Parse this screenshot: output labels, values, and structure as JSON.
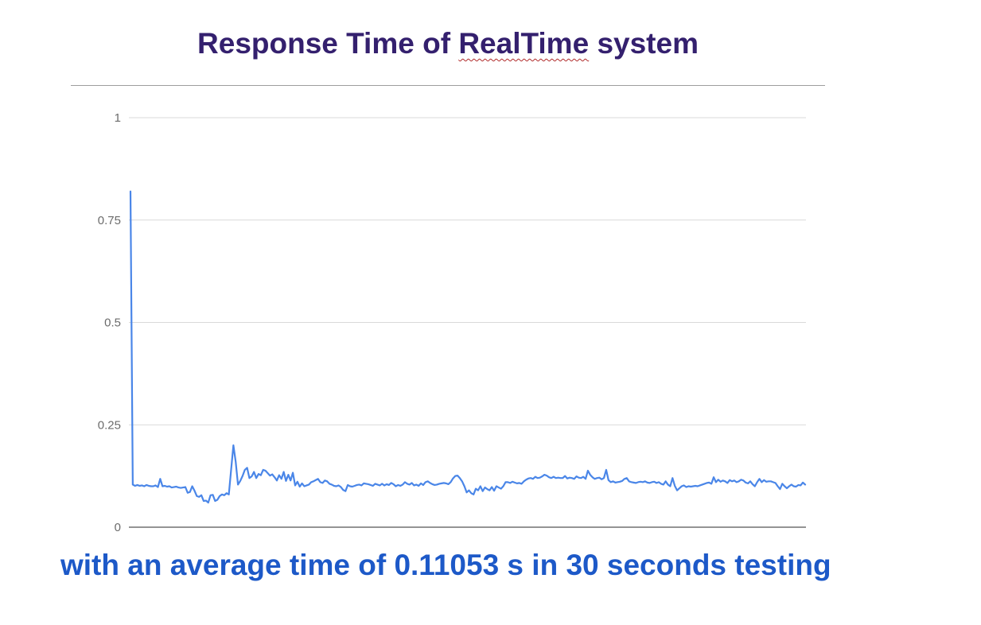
{
  "title": {
    "prefix": "Response Time of ",
    "highlight": "RealTime",
    "suffix": " system"
  },
  "caption": "with an average time of 0.11053 s in 30 seconds testing",
  "colors": {
    "title": "#34206e",
    "caption": "#1d59c8",
    "line": "#4a86e8",
    "grid": "#d9d9d9",
    "axis": "#555555"
  },
  "chart_data": {
    "type": "line",
    "title": "Response Time of RealTime system",
    "xlabel": "",
    "ylabel": "",
    "ylim": [
      0,
      1
    ],
    "yticks": [
      "0",
      "0.25",
      "0.5",
      "0.75",
      "1"
    ],
    "grid": true,
    "legend": "none",
    "series": [
      {
        "values": [
          0.82,
          0.104,
          0.101,
          0.103,
          0.101,
          0.102,
          0.1,
          0.103,
          0.101,
          0.1,
          0.1,
          0.102,
          0.098,
          0.118,
          0.1,
          0.101,
          0.099,
          0.1,
          0.097,
          0.098,
          0.099,
          0.097,
          0.096,
          0.097,
          0.098,
          0.084,
          0.086,
          0.1,
          0.089,
          0.076,
          0.074,
          0.078,
          0.064,
          0.065,
          0.06,
          0.078,
          0.079,
          0.064,
          0.067,
          0.076,
          0.08,
          0.078,
          0.083,
          0.08,
          0.14,
          0.2,
          0.16,
          0.104,
          0.113,
          0.125,
          0.14,
          0.145,
          0.12,
          0.124,
          0.135,
          0.12,
          0.13,
          0.127,
          0.14,
          0.138,
          0.132,
          0.126,
          0.129,
          0.122,
          0.114,
          0.127,
          0.118,
          0.135,
          0.113,
          0.128,
          0.114,
          0.133,
          0.102,
          0.111,
          0.099,
          0.107,
          0.1,
          0.102,
          0.104,
          0.11,
          0.112,
          0.115,
          0.118,
          0.11,
          0.108,
          0.114,
          0.112,
          0.106,
          0.104,
          0.101,
          0.1,
          0.102,
          0.098,
          0.091,
          0.088,
          0.103,
          0.1,
          0.099,
          0.101,
          0.103,
          0.104,
          0.102,
          0.107,
          0.106,
          0.105,
          0.103,
          0.101,
          0.106,
          0.104,
          0.102,
          0.106,
          0.102,
          0.105,
          0.103,
          0.108,
          0.105,
          0.1,
          0.103,
          0.101,
          0.104,
          0.11,
          0.106,
          0.104,
          0.108,
          0.102,
          0.104,
          0.101,
          0.107,
          0.103,
          0.11,
          0.112,
          0.108,
          0.105,
          0.103,
          0.104,
          0.106,
          0.107,
          0.108,
          0.107,
          0.105,
          0.11,
          0.119,
          0.125,
          0.126,
          0.12,
          0.112,
          0.1,
          0.085,
          0.09,
          0.083,
          0.08,
          0.094,
          0.09,
          0.1,
          0.088,
          0.097,
          0.093,
          0.09,
          0.098,
          0.089,
          0.1,
          0.097,
          0.094,
          0.1,
          0.11,
          0.11,
          0.108,
          0.111,
          0.109,
          0.107,
          0.108,
          0.106,
          0.112,
          0.116,
          0.119,
          0.12,
          0.118,
          0.123,
          0.12,
          0.121,
          0.124,
          0.128,
          0.126,
          0.122,
          0.12,
          0.123,
          0.12,
          0.121,
          0.12,
          0.12,
          0.125,
          0.119,
          0.121,
          0.12,
          0.118,
          0.124,
          0.121,
          0.12,
          0.123,
          0.118,
          0.138,
          0.128,
          0.122,
          0.118,
          0.12,
          0.121,
          0.117,
          0.12,
          0.14,
          0.115,
          0.11,
          0.112,
          0.109,
          0.11,
          0.111,
          0.113,
          0.118,
          0.12,
          0.112,
          0.11,
          0.109,
          0.108,
          0.11,
          0.111,
          0.11,
          0.112,
          0.109,
          0.108,
          0.11,
          0.111,
          0.108,
          0.11,
          0.106,
          0.104,
          0.112,
          0.104,
          0.1,
          0.12,
          0.101,
          0.09,
          0.095,
          0.1,
          0.102,
          0.098,
          0.1,
          0.099,
          0.1,
          0.101,
          0.1,
          0.102,
          0.104,
          0.106,
          0.108,
          0.109,
          0.106,
          0.122,
          0.11,
          0.116,
          0.111,
          0.114,
          0.112,
          0.108,
          0.115,
          0.112,
          0.114,
          0.11,
          0.112,
          0.116,
          0.114,
          0.109,
          0.107,
          0.112,
          0.105,
          0.1,
          0.11,
          0.118,
          0.11,
          0.115,
          0.111,
          0.112,
          0.112,
          0.11,
          0.108,
          0.1,
          0.093,
          0.106,
          0.1,
          0.095,
          0.1,
          0.104,
          0.1,
          0.099,
          0.103,
          0.102,
          0.109,
          0.104
        ]
      }
    ]
  }
}
